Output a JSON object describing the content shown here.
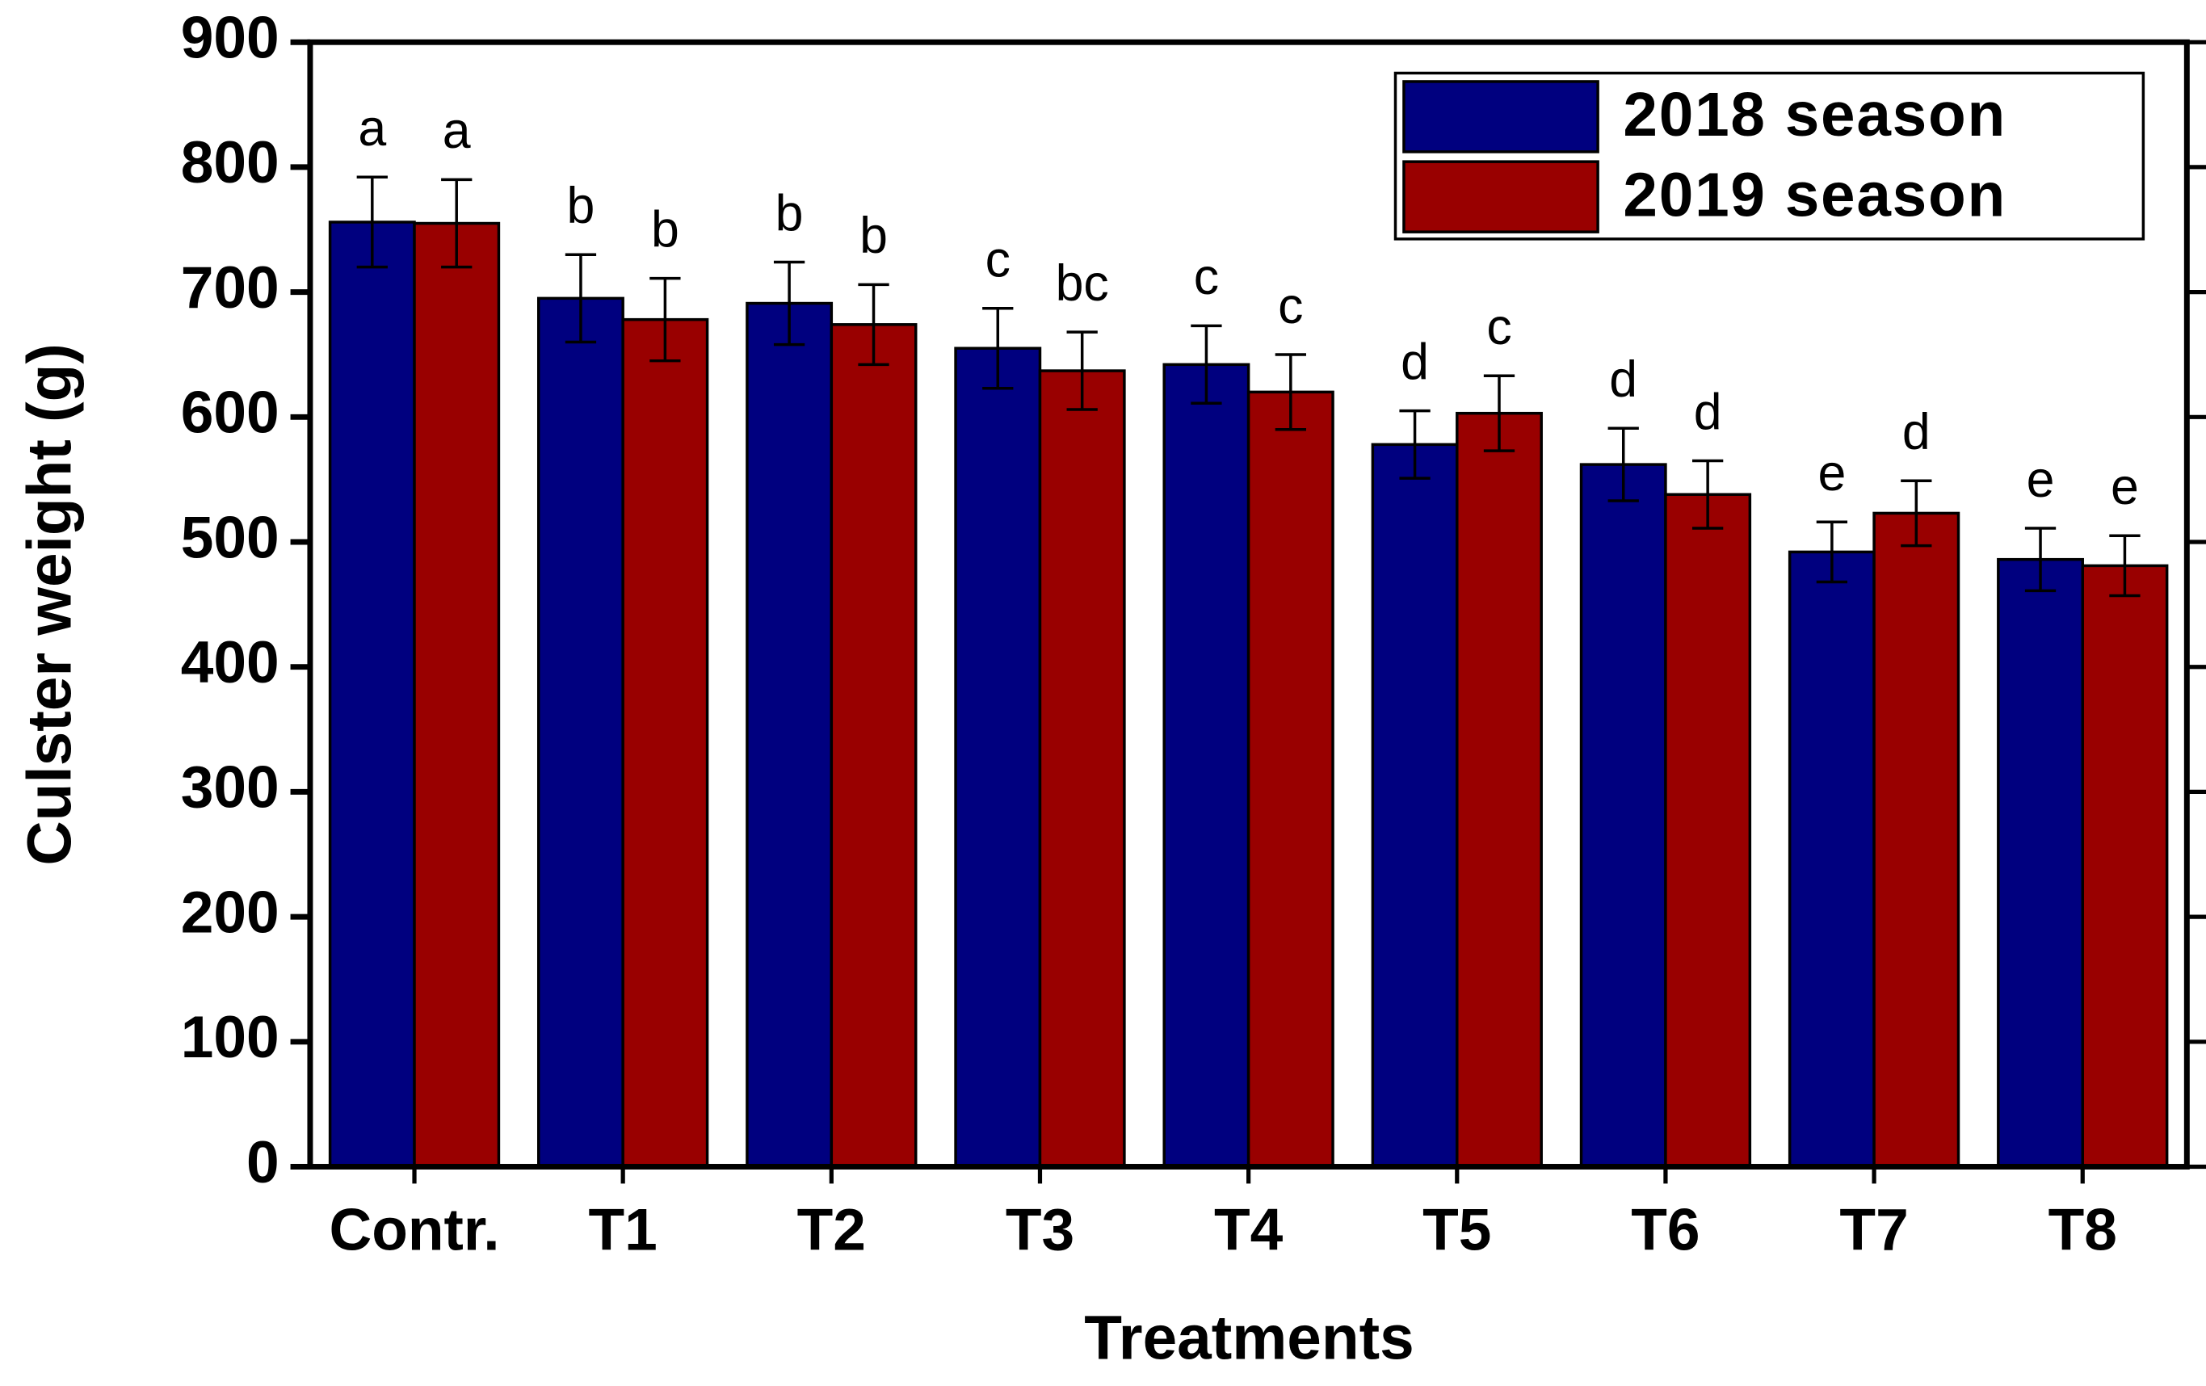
{
  "chart_data": {
    "type": "bar",
    "x_label": "Treatments",
    "y_label": "Culster weight (g)",
    "categories": [
      "Contr.",
      "T1",
      "T2",
      "T3",
      "T4",
      "T5",
      "T6",
      "T7",
      "T8"
    ],
    "series": [
      {
        "name": "2018 season",
        "color": "#00007f",
        "values": [
          756,
          695,
          691,
          655,
          642,
          578,
          562,
          492,
          486
        ],
        "errors": [
          36,
          35,
          33,
          32,
          31,
          27,
          29,
          24,
          25
        ],
        "letters": [
          "a",
          "b",
          "b",
          "c",
          "c",
          "d",
          "d",
          "e",
          "e"
        ]
      },
      {
        "name": "2019 season",
        "color": "#990000",
        "values": [
          755,
          678,
          674,
          637,
          620,
          603,
          538,
          523,
          481
        ],
        "errors": [
          35,
          33,
          32,
          31,
          30,
          30,
          27,
          26,
          24
        ],
        "letters": [
          "a",
          "b",
          "b",
          "bc",
          "c",
          "c",
          "d",
          "d",
          "e"
        ]
      }
    ],
    "ylim": [
      0,
      900
    ],
    "yticks": [
      0,
      100,
      200,
      300,
      400,
      500,
      600,
      700,
      800,
      900
    ],
    "legend": "upper right"
  }
}
